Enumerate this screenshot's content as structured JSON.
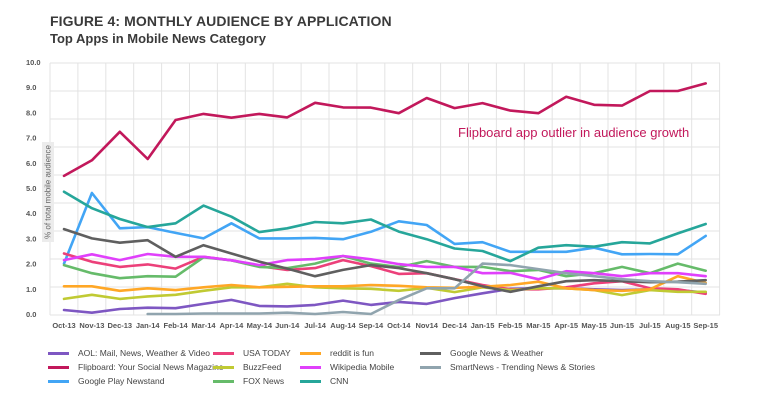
{
  "header": {
    "title": "FIGURE 4: MONTHLY AUDIENCE BY APPLICATION",
    "subtitle": "Top Apps in Mobile News Category"
  },
  "chart_data": {
    "type": "line",
    "title": "FIGURE 4: MONTHLY AUDIENCE BY APPLICATION",
    "subtitle": "Top Apps in Mobile News Category",
    "xlabel": "",
    "ylabel": "% of total mobile audience",
    "ylim": [
      0,
      10
    ],
    "yticks": [
      "0.0",
      "1.0",
      "2.0",
      "3.0",
      "4.0",
      "5.0",
      "6.0",
      "7.0",
      "8.0",
      "9.0",
      "10.0"
    ],
    "grid": true,
    "legend_position": "bottom",
    "annotation": "Flipboard app outlier in audience growth",
    "categories": [
      "Oct-13",
      "Nov-13",
      "Dec-13",
      "Jan-14",
      "Feb-14",
      "Mar-14",
      "Apr-14",
      "May-14",
      "Jun-14",
      "Jul-14",
      "Aug-14",
      "Sep-14",
      "Oct-14",
      "Nov14",
      "Dec-14",
      "Jan-15",
      "Feb-15",
      "Mar-15",
      "Apr-15",
      "May-15",
      "Jun-15",
      "Jul-15",
      "Aug-15",
      "Sep-15"
    ],
    "series": [
      {
        "name": "AOL: Mail, News, Weather & Video",
        "color": "#7e57c2",
        "values": [
          0.16,
          0.05,
          0.2,
          0.25,
          0.23,
          0.4,
          0.56,
          0.32,
          0.3,
          0.36,
          0.53,
          0.36,
          0.48,
          0.4,
          0.63,
          0.82,
          1.0,
          1.02,
          1.02,
          0.98,
          0.95,
          0.98,
          0.95,
          0.85
        ]
      },
      {
        "name": "Flipboard: Your Social News Magazine",
        "color": "#c2185b",
        "values": [
          5.48,
          6.1,
          7.23,
          6.15,
          7.7,
          7.94,
          7.79,
          7.94,
          7.8,
          8.38,
          8.2,
          8.19,
          7.97,
          8.57,
          8.17,
          8.37,
          8.07,
          7.97,
          8.62,
          8.3,
          8.27,
          8.85,
          8.85,
          9.15
        ]
      },
      {
        "name": "Google Play Newstand",
        "color": "#42a5f5",
        "values": [
          2.0,
          4.8,
          3.4,
          3.45,
          3.22,
          3.0,
          3.6,
          3.0,
          3.0,
          3.02,
          2.97,
          3.26,
          3.68,
          3.53,
          2.78,
          2.85,
          2.47,
          2.47,
          2.47,
          2.63,
          2.37,
          2.38,
          2.37,
          3.1
        ]
      },
      {
        "name": "USA TODAY",
        "color": "#ec407a",
        "values": [
          2.4,
          2.07,
          1.87,
          1.97,
          1.8,
          2.27,
          2.13,
          1.9,
          1.75,
          1.82,
          2.14,
          1.9,
          1.59,
          1.62,
          1.38,
          1.15,
          0.98,
          0.98,
          1.06,
          1.22,
          1.3,
          1.02,
          0.98,
          0.8
        ]
      },
      {
        "name": "BuzzFeed",
        "color": "#c0ca33",
        "values": [
          0.6,
          0.76,
          0.6,
          0.7,
          0.76,
          0.92,
          1.06,
          1.06,
          1.2,
          1.06,
          1.02,
          1.0,
          0.92,
          1.04,
          0.87,
          1.06,
          0.95,
          1.02,
          1.02,
          0.95,
          0.75,
          0.95,
          0.88,
          0.88
        ]
      },
      {
        "name": "FOX News",
        "color": "#66bb6a",
        "values": [
          1.94,
          1.62,
          1.42,
          1.5,
          1.48,
          2.25,
          2.13,
          1.87,
          1.82,
          2.0,
          2.3,
          2.0,
          1.86,
          2.1,
          1.87,
          1.87,
          1.7,
          1.75,
          1.5,
          1.62,
          1.87,
          1.62,
          2.0,
          1.72
        ]
      },
      {
        "name": "reddit is fun",
        "color": "#ffa726",
        "values": [
          1.1,
          1.1,
          0.92,
          1.02,
          0.95,
          1.06,
          1.15,
          1.06,
          1.08,
          1.1,
          1.1,
          1.15,
          1.12,
          1.06,
          1.04,
          1.08,
          1.15,
          1.28,
          1.02,
          0.95,
          0.92,
          0.98,
          1.5,
          1.23
        ]
      },
      {
        "name": "Wikipedia Mobile",
        "color": "#e040fb",
        "values": [
          2.14,
          2.37,
          2.14,
          2.38,
          2.27,
          2.27,
          2.13,
          1.94,
          2.14,
          2.18,
          2.3,
          2.17,
          1.98,
          1.87,
          1.87,
          1.62,
          1.63,
          1.38,
          1.7,
          1.62,
          1.5,
          1.62,
          1.62,
          1.5
        ]
      },
      {
        "name": "CNN",
        "color": "#26a69a",
        "values": [
          4.85,
          4.2,
          3.77,
          3.45,
          3.6,
          4.3,
          3.86,
          3.25,
          3.4,
          3.65,
          3.6,
          3.75,
          3.27,
          2.97,
          2.6,
          2.5,
          2.1,
          2.63,
          2.73,
          2.67,
          2.85,
          2.8,
          3.2,
          3.57
        ]
      },
      {
        "name": "Google News & Weather",
        "color": "#5f5f5f",
        "values": [
          3.37,
          3.0,
          2.83,
          2.93,
          2.27,
          2.73,
          2.4,
          2.08,
          1.8,
          1.5,
          1.75,
          1.94,
          1.82,
          1.62,
          1.38,
          1.1,
          0.88,
          1.1,
          1.3,
          1.34,
          1.3,
          1.26,
          1.28,
          1.34
        ]
      },
      {
        "name": "SmartNews - Trending News & Stories",
        "color": "#90a4ae",
        "values": [
          null,
          null,
          null,
          0.0,
          0.0,
          0.02,
          0.02,
          0.02,
          0.05,
          0.0,
          0.08,
          0.0,
          0.55,
          1.02,
          1.02,
          2.0,
          1.94,
          1.78,
          1.62,
          1.5,
          1.38,
          1.3,
          1.26,
          1.2
        ]
      }
    ]
  },
  "legend": {
    "items": [
      {
        "label": "AOL: Mail, News, Weather & Video",
        "color": "#7e57c2"
      },
      {
        "label": "Flipboard: Your Social News Magazine",
        "color": "#c2185b"
      },
      {
        "label": "Google Play Newstand",
        "color": "#42a5f5"
      },
      {
        "label": "USA TODAY",
        "color": "#ec407a"
      },
      {
        "label": "BuzzFeed",
        "color": "#c0ca33"
      },
      {
        "label": "FOX News",
        "color": "#66bb6a"
      },
      {
        "label": "reddit is fun",
        "color": "#ffa726"
      },
      {
        "label": "Wikipedia Mobile",
        "color": "#e040fb"
      },
      {
        "label": "CNN",
        "color": "#26a69a"
      },
      {
        "label": "Google News & Weather",
        "color": "#5f5f5f"
      },
      {
        "label": "SmartNews - Trending News & Stories",
        "color": "#90a4ae"
      }
    ]
  }
}
